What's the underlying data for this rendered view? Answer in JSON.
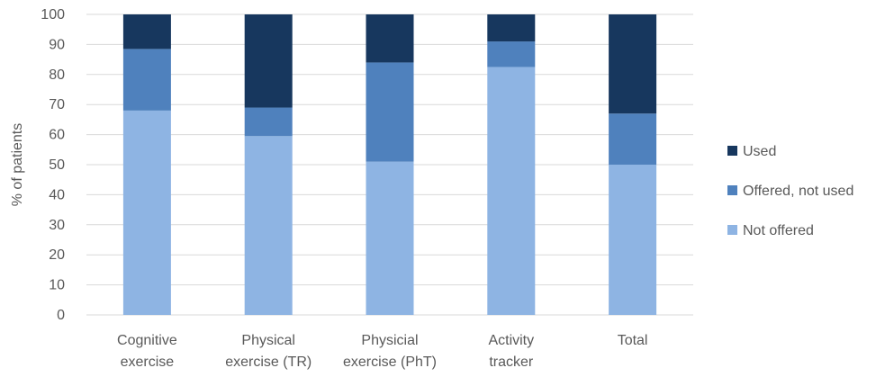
{
  "chart_data": {
    "type": "bar",
    "stacked": true,
    "percent_scale": true,
    "categories": [
      [
        "Cognitive",
        "exercise"
      ],
      [
        "Physical",
        "exercise (TR)"
      ],
      [
        "Physicial",
        "exercise (PhT)"
      ],
      [
        "Activity",
        "tracker"
      ],
      [
        "Total"
      ]
    ],
    "series": [
      {
        "name": "Not offered",
        "color": "#8eb4e3",
        "values": [
          68,
          59.5,
          51,
          82.5,
          50
        ]
      },
      {
        "name": "Offered, not used",
        "color": "#4f81bd",
        "values": [
          20.5,
          9.5,
          33,
          8.5,
          17
        ]
      },
      {
        "name": "Used",
        "color": "#17375e",
        "values": [
          11.5,
          31,
          16,
          9,
          33
        ]
      }
    ],
    "ylabel": "% of patients",
    "ylim": [
      0,
      100
    ],
    "yticks": [
      0,
      10,
      20,
      30,
      40,
      50,
      60,
      70,
      80,
      90,
      100
    ],
    "grid": true,
    "legend": {
      "position": "right",
      "order": [
        "Used",
        "Offered, not used",
        "Not offered"
      ]
    }
  }
}
